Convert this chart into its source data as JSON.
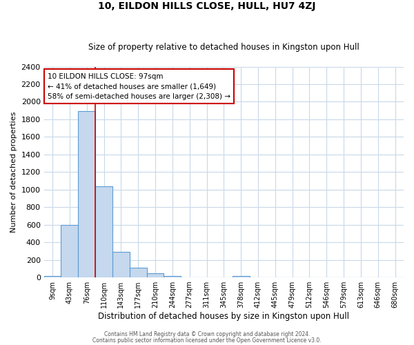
{
  "title": "10, EILDON HILLS CLOSE, HULL, HU7 4ZJ",
  "subtitle": "Size of property relative to detached houses in Kingston upon Hull",
  "xlabel": "Distribution of detached houses by size in Kingston upon Hull",
  "ylabel": "Number of detached properties",
  "bin_labels": [
    "9sqm",
    "43sqm",
    "76sqm",
    "110sqm",
    "143sqm",
    "177sqm",
    "210sqm",
    "244sqm",
    "277sqm",
    "311sqm",
    "345sqm",
    "378sqm",
    "412sqm",
    "445sqm",
    "479sqm",
    "512sqm",
    "546sqm",
    "579sqm",
    "613sqm",
    "646sqm",
    "680sqm"
  ],
  "bar_values": [
    20,
    600,
    1890,
    1040,
    290,
    110,
    45,
    20,
    0,
    0,
    0,
    20,
    0,
    0,
    0,
    0,
    0,
    0,
    0,
    0,
    0
  ],
  "bar_color": "#c5d8ed",
  "bar_edge_color": "#5b9bd5",
  "vline_x_index": 2.5,
  "vline_color": "#cc0000",
  "ylim": [
    0,
    2400
  ],
  "yticks": [
    0,
    200,
    400,
    600,
    800,
    1000,
    1200,
    1400,
    1600,
    1800,
    2000,
    2200,
    2400
  ],
  "annotation_line1": "10 EILDON HILLS CLOSE: 97sqm",
  "annotation_line2": "← 41% of detached houses are smaller (1,649)",
  "annotation_line3": "58% of semi-detached houses are larger (2,308) →",
  "annotation_box_color": "#ffffff",
  "annotation_box_edge": "#cc0000",
  "footer_line1": "Contains HM Land Registry data © Crown copyright and database right 2024.",
  "footer_line2": "Contains public sector information licensed under the Open Government Licence v3.0.",
  "bg_color": "#ffffff",
  "grid_color": "#c8d8e8"
}
